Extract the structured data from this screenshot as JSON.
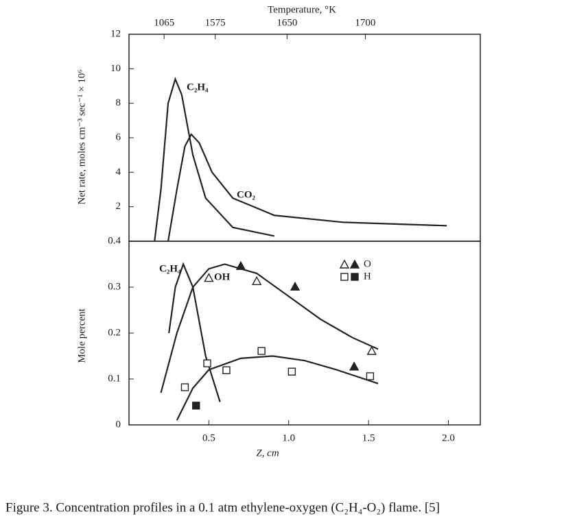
{
  "chart_data": [
    {
      "type": "line",
      "ylabel": "Net rate, moles cm⁻³ sec⁻¹ × 10⁶",
      "x2label": "Temperature, °K",
      "xlim": [
        0,
        2.2
      ],
      "ylim": [
        0,
        12
      ],
      "yticks": [
        2,
        4,
        6,
        8,
        10,
        12
      ],
      "x2ticks": [
        {
          "value": 0.22,
          "label": "1065"
        },
        {
          "value": 0.54,
          "label": "1575"
        },
        {
          "value": 0.99,
          "label": "1650"
        },
        {
          "value": 1.48,
          "label": "1700"
        }
      ],
      "series": [
        {
          "name": "C₂H₄",
          "color": "#222222",
          "x": [
            0.16,
            0.2,
            0.245,
            0.29,
            0.33,
            0.4,
            0.48,
            0.65,
            0.91
          ],
          "values": [
            0,
            3,
            8,
            9.4,
            8.5,
            5,
            2.5,
            0.8,
            0.3
          ]
        },
        {
          "name": "CO₂",
          "color": "#222222",
          "x": [
            0.245,
            0.3,
            0.35,
            0.39,
            0.44,
            0.52,
            0.65,
            0.91,
            1.34,
            1.99
          ],
          "values": [
            0,
            3,
            5.5,
            6.2,
            5.7,
            4,
            2.5,
            1.5,
            1.1,
            0.9
          ]
        }
      ]
    },
    {
      "type": "line",
      "ylabel": "Mole percent",
      "xlabel": "Z, cm",
      "xlim": [
        0,
        2.2
      ],
      "ylim": [
        0,
        0.4
      ],
      "yticks": [
        0,
        0.1,
        0.2,
        0.3,
        0.4
      ],
      "xticks": [
        0.5,
        {
          "value": 1,
          "label": "1.0"
        },
        1.5,
        {
          "value": 2,
          "label": "2.0"
        }
      ],
      "series": [
        {
          "name": "C₂H₄",
          "color": "#222222",
          "x": [
            0.25,
            0.29,
            0.34,
            0.4,
            0.48,
            0.57
          ],
          "values": [
            0.2,
            0.3,
            0.35,
            0.3,
            0.15,
            0.05
          ]
        },
        {
          "name": "OH",
          "color": "#222222",
          "x": [
            0.2,
            0.3,
            0.4,
            0.5,
            0.6,
            0.8,
            1.0,
            1.2,
            1.4,
            1.56
          ],
          "values": [
            0.07,
            0.2,
            0.3,
            0.34,
            0.35,
            0.33,
            0.28,
            0.23,
            0.19,
            0.165
          ]
        },
        {
          "color": "#222222",
          "x": [
            0.3,
            0.4,
            0.5,
            0.7,
            0.9,
            1.1,
            1.3,
            1.56
          ],
          "values": [
            0.01,
            0.08,
            0.12,
            0.145,
            0.15,
            0.14,
            0.12,
            0.09
          ]
        },
        {
          "name": "O",
          "marker": "triangle",
          "color": "#222222",
          "x": [
            0.5,
            0.7,
            0.8,
            1.04,
            1.41,
            1.52
          ],
          "values": [
            0.32,
            0.346,
            0.313,
            0.301,
            0.127,
            0.161
          ],
          "filled": [
            false,
            true,
            false,
            true,
            true,
            false
          ]
        },
        {
          "name": "H",
          "marker": "square",
          "color": "#222222",
          "x": [
            0.35,
            0.42,
            0.49,
            0.61,
            0.83,
            1.02,
            1.51
          ],
          "values": [
            0.082,
            0.042,
            0.134,
            0.119,
            0.161,
            0.116,
            0.106
          ],
          "filled": [
            false,
            true,
            false,
            false,
            false,
            false,
            false
          ]
        }
      ]
    }
  ],
  "caption": "Figure 3.   Concentration profiles in a 0.1 atm ethylene-oxygen (C₂H₄-O₂) flame. [5]"
}
